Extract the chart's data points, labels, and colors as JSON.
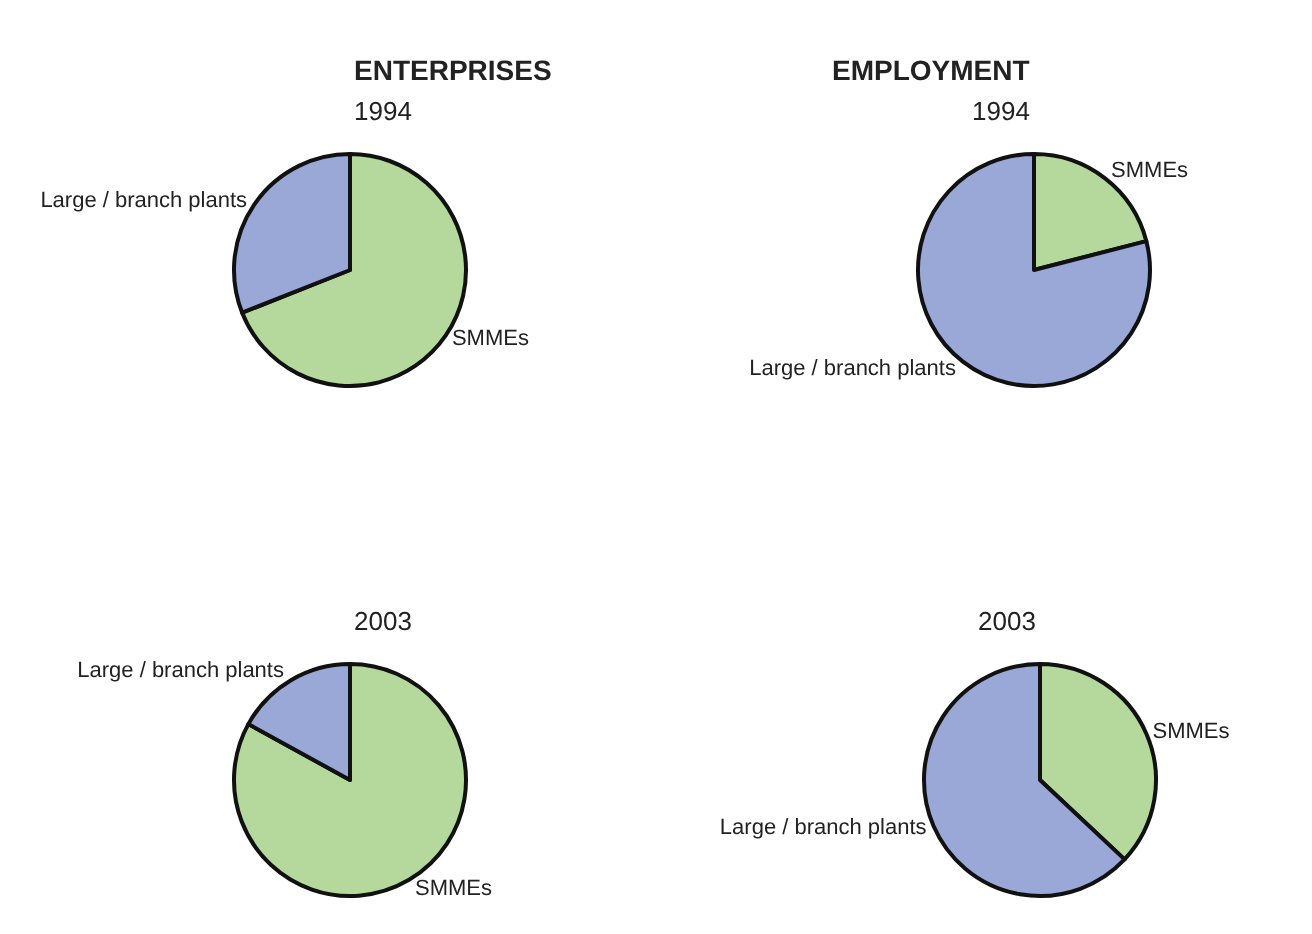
{
  "chart_data": [
    {
      "type": "pie",
      "title": "ENTERPRISES",
      "subtitle": "1994",
      "categories": [
        "SMMEs",
        "Large / branch plants"
      ],
      "values": [
        69,
        31
      ],
      "colors": [
        "#b5d99c",
        "#9aa8d8"
      ]
    },
    {
      "type": "pie",
      "title": "EMPLOYMENT",
      "subtitle": "1994",
      "categories": [
        "SMMEs",
        "Large / branch plants"
      ],
      "values": [
        21,
        79
      ],
      "colors": [
        "#b5d99c",
        "#9aa8d8"
      ]
    },
    {
      "type": "pie",
      "title": "2003",
      "categories": [
        "SMMEs",
        "Large / branch plants"
      ],
      "values": [
        83,
        17
      ],
      "colors": [
        "#b5d99c",
        "#9aa8d8"
      ]
    },
    {
      "type": "pie",
      "title": "2003",
      "categories": [
        "SMMEs",
        "Large / branch plants"
      ],
      "values": [
        37,
        63
      ],
      "colors": [
        "#b5d99c",
        "#9aa8d8"
      ]
    }
  ]
}
